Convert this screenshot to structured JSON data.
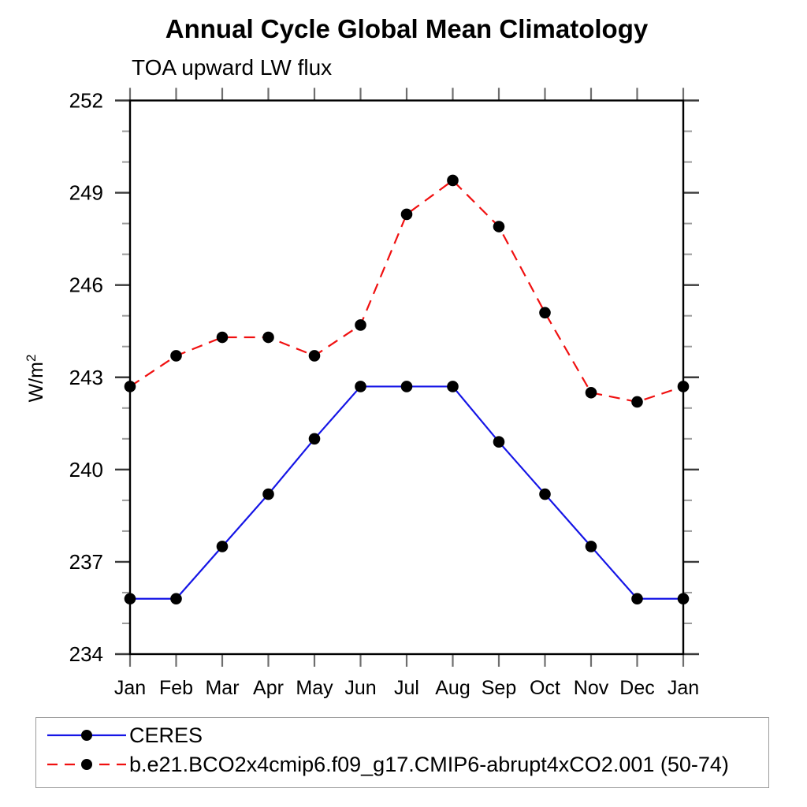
{
  "title": "Annual Cycle Global Mean Climatology",
  "subtitle": "TOA upward LW flux",
  "chart_data": {
    "type": "line",
    "categories": [
      "Jan",
      "Feb",
      "Mar",
      "Apr",
      "May",
      "Jun",
      "Jul",
      "Aug",
      "Sep",
      "Oct",
      "Nov",
      "Dec",
      "Jan"
    ],
    "xlabel": "",
    "ylabel_base": "W/m",
    "ylabel_sup": "2",
    "ylim": [
      234,
      252
    ],
    "y_tick_labels": [
      234,
      237,
      240,
      243,
      246,
      249,
      252
    ],
    "y_major_step": 3,
    "y_minor_step": 1,
    "grid": false,
    "legend_position": "bottom-left-box",
    "marker_color": "#000000",
    "series": [
      {
        "name": "CERES",
        "color": "#1515e6",
        "style": "solid",
        "marker": "filled-circle",
        "values": [
          235.8,
          235.8,
          237.5,
          239.2,
          241.0,
          242.7,
          242.7,
          242.7,
          240.9,
          239.2,
          237.5,
          235.8,
          235.8
        ]
      },
      {
        "name": "b.e21.BCO2x4cmip6.f09_g17.CMIP6-abrupt4xCO2.001 (50-74)",
        "color": "#f01010",
        "style": "dashed",
        "marker": "filled-circle",
        "values": [
          242.7,
          243.7,
          244.3,
          244.3,
          243.7,
          244.7,
          248.3,
          249.4,
          247.9,
          245.1,
          242.5,
          242.2,
          242.7
        ]
      }
    ]
  }
}
